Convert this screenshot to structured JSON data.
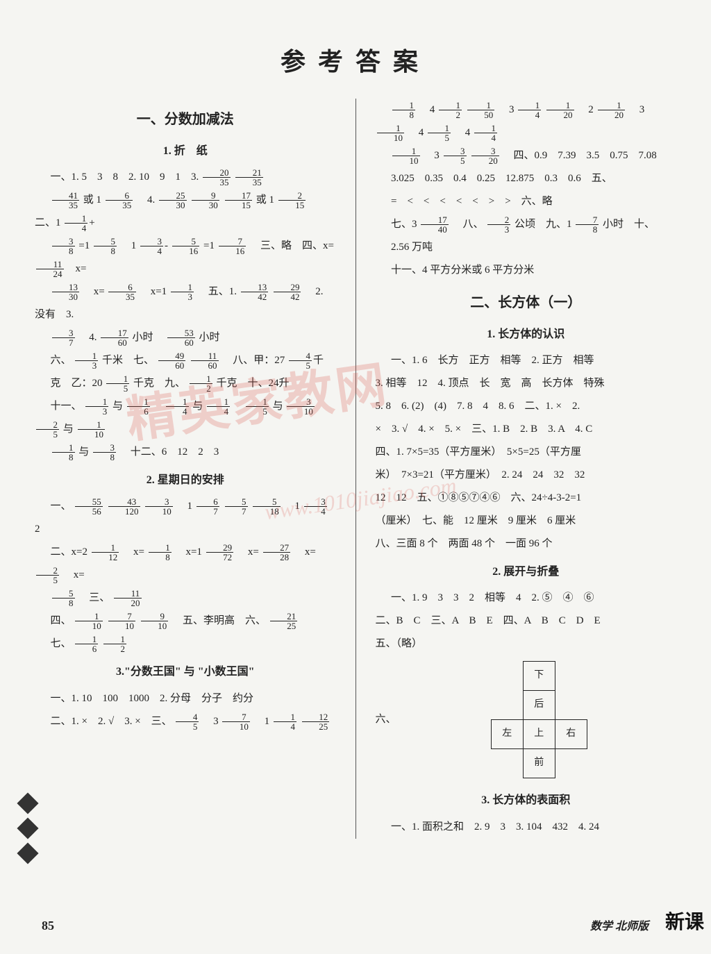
{
  "title": "参考答案",
  "watermark_text": "精英家教网",
  "watermark_url": "www.1010jiajiao.com",
  "page_number": "85",
  "footer_right": "数学 北师版",
  "deco_right": "新课",
  "left": {
    "section1": "一、分数加减法",
    "sub1": "1. 折　纸",
    "sub2": "2. 星期日的安排",
    "sub3": "3.\"分数王国\" 与 \"小数王国\""
  },
  "right": {
    "section2": "二、长方体（一）",
    "sub1": "1. 长方体的认识",
    "sub2": "2. 展开与折叠",
    "sub3": "3. 长方体的表面积"
  },
  "net": {
    "top": "下",
    "back": "后",
    "left": "左",
    "up": "上",
    "right": "右",
    "front": "前",
    "label": "六、"
  },
  "L": {
    "l1a": "一、1. 5　3　8　2. 10　9　1　3. ",
    "l2a": "或 1",
    "l2b": "　4. ",
    "l2c": "或 1",
    "l2d": "　二、1",
    "l3a": "=1",
    "l3b": "　1",
    "l3c": "=1",
    "l3d": "　三、略　四、x=",
    "l4a": "　x=",
    "l4b": "　x=1",
    "l4c": "　五、1. ",
    "l4d": "　2. 没有　3.",
    "l5a": "　4. ",
    "l5b": "小时　",
    "l5c": "小时",
    "l6a": "六、",
    "l6b": "千米　七、",
    "l6c": "　八、甲：27",
    "l7a": "克　乙：20",
    "l7b": "千克　九、",
    "l7c": "千克　十、24升",
    "l8a": "十一、",
    "l8b": "与",
    "l8c": "与",
    "l8d": "与",
    "l8e": "与",
    "l9a": "与",
    "l9b": "　十二、6　12　2　3",
    "l10a": "一、",
    "l10b": "　1",
    "l10c": "　1",
    "l10d": "　2",
    "l11a": "二、x=2",
    "l11b": "　x=",
    "l11c": "　x=1",
    "l11d": "　x=",
    "l11e": "　x=",
    "l11f": "　x=",
    "l12a": "　三、",
    "l13a": "四、",
    "l13b": "　五、李明高　六、",
    "l14a": "七、",
    "l15": "一、1. 10　100　1000　2. 分母　分子　约分",
    "l16a": "二、1. ×　2. √　3. ×　三、",
    "l16b": "　3",
    "l16c": "　1"
  },
  "R": {
    "r1a": "　4",
    "r1b": "　3",
    "r1c": "　2",
    "r1d": "　3",
    "r1e": "　4",
    "r1f": "　4",
    "r2a": "　3",
    "r2b": "　四、0.9　7.39　3.5　0.75　7.08",
    "r3": "3.025　0.35　0.4　0.25　12.875　0.3　0.6　五、",
    "r4": "=　<　<　<　<　<　>　>　六、略",
    "r5a": "七、3",
    "r5b": "　八、",
    "r5c": "公顷　九、1",
    "r5d": "小时　十、",
    "r6": "2.56 万吨",
    "r7": "十一、4 平方分米或 6 平方分米",
    "r8": "一、1. 6　长方　正方　相等　2. 正方　相等",
    "r9": "3. 相等　12　4. 顶点　长　宽　高　长方体　特殊",
    "r10": "5. 8　6. (2)　(4)　7. 8　4　8. 6　二、1. ×　2.",
    "r11": "×　3. √　4. ×　5. ×　三、1. B　2. B　3. A　4. C",
    "r12": "四、1. 7×5=35（平方厘米）　5×5=25（平方厘",
    "r13": "米）　7×3=21（平方厘米）　2. 24　24　32　32",
    "r14": "12　12　五、①⑧⑤⑦④⑥　六、24÷4-3-2=1",
    "r15": "（厘米）　七、能　12 厘米　9 厘米　6 厘米",
    "r16": "八、三面 8 个　两面 48 个　一面 96 个",
    "r17": "一、1. 9　3　3　2　相等　4　2. ⑤　④　⑥",
    "r18": "二、B　C　三、A　B　E　四、A　B　C　D　E",
    "r19": "五、（略）",
    "r20": "一、1. 面积之和　2. 9　3　3. 104　432　4. 24"
  },
  "F": {
    "f20_35": {
      "n": "20",
      "d": "35"
    },
    "f21_35": {
      "n": "21",
      "d": "35"
    },
    "f41_35": {
      "n": "41",
      "d": "35"
    },
    "f6_35": {
      "n": "6",
      "d": "35"
    },
    "f25_30": {
      "n": "25",
      "d": "30"
    },
    "f9_30": {
      "n": "9",
      "d": "30"
    },
    "f17_15": {
      "n": "17",
      "d": "15"
    },
    "f2_15": {
      "n": "2",
      "d": "15"
    },
    "f1_4": {
      "n": "1",
      "d": "4"
    },
    "f3_8": {
      "n": "3",
      "d": "8"
    },
    "f5_8": {
      "n": "5",
      "d": "8"
    },
    "f3_4": {
      "n": "3",
      "d": "4"
    },
    "f5_16": {
      "n": "5",
      "d": "16"
    },
    "f7_16": {
      "n": "7",
      "d": "16"
    },
    "f11_24": {
      "n": "11",
      "d": "24"
    },
    "f13_30": {
      "n": "13",
      "d": "30"
    },
    "f6_35b": {
      "n": "6",
      "d": "35"
    },
    "f1_3": {
      "n": "1",
      "d": "3"
    },
    "f13_42": {
      "n": "13",
      "d": "42"
    },
    "f29_42": {
      "n": "29",
      "d": "42"
    },
    "f3_7": {
      "n": "3",
      "d": "7"
    },
    "f17_60": {
      "n": "17",
      "d": "60"
    },
    "f53_60": {
      "n": "53",
      "d": "60"
    },
    "f49_60": {
      "n": "49",
      "d": "60"
    },
    "f11_60": {
      "n": "11",
      "d": "60"
    },
    "f4_5": {
      "n": "4",
      "d": "5"
    },
    "f1_5": {
      "n": "1",
      "d": "5"
    },
    "f1_2": {
      "n": "1",
      "d": "2"
    },
    "f1_6": {
      "n": "1",
      "d": "6"
    },
    "f3_10": {
      "n": "3",
      "d": "10"
    },
    "f2_5": {
      "n": "2",
      "d": "5"
    },
    "f1_10": {
      "n": "1",
      "d": "10"
    },
    "f1_8": {
      "n": "1",
      "d": "8"
    },
    "f55_56": {
      "n": "55",
      "d": "56"
    },
    "f43_120": {
      "n": "43",
      "d": "120"
    },
    "f6_7": {
      "n": "6",
      "d": "7"
    },
    "f5_7": {
      "n": "5",
      "d": "7"
    },
    "f5_18": {
      "n": "5",
      "d": "18"
    },
    "f1_12": {
      "n": "1",
      "d": "12"
    },
    "f29_72": {
      "n": "29",
      "d": "72"
    },
    "f27_28": {
      "n": "27",
      "d": "28"
    },
    "f11_20": {
      "n": "11",
      "d": "20"
    },
    "f7_10": {
      "n": "7",
      "d": "10"
    },
    "f9_10": {
      "n": "9",
      "d": "10"
    },
    "f21_25": {
      "n": "21",
      "d": "25"
    },
    "f12_25": {
      "n": "12",
      "d": "25"
    },
    "f1_50": {
      "n": "1",
      "d": "50"
    },
    "f1_20": {
      "n": "1",
      "d": "20"
    },
    "f3_5": {
      "n": "3",
      "d": "5"
    },
    "f3_20": {
      "n": "3",
      "d": "20"
    },
    "f17_40": {
      "n": "17",
      "d": "40"
    },
    "f2_3": {
      "n": "2",
      "d": "3"
    },
    "f7_8": {
      "n": "7",
      "d": "8"
    }
  }
}
